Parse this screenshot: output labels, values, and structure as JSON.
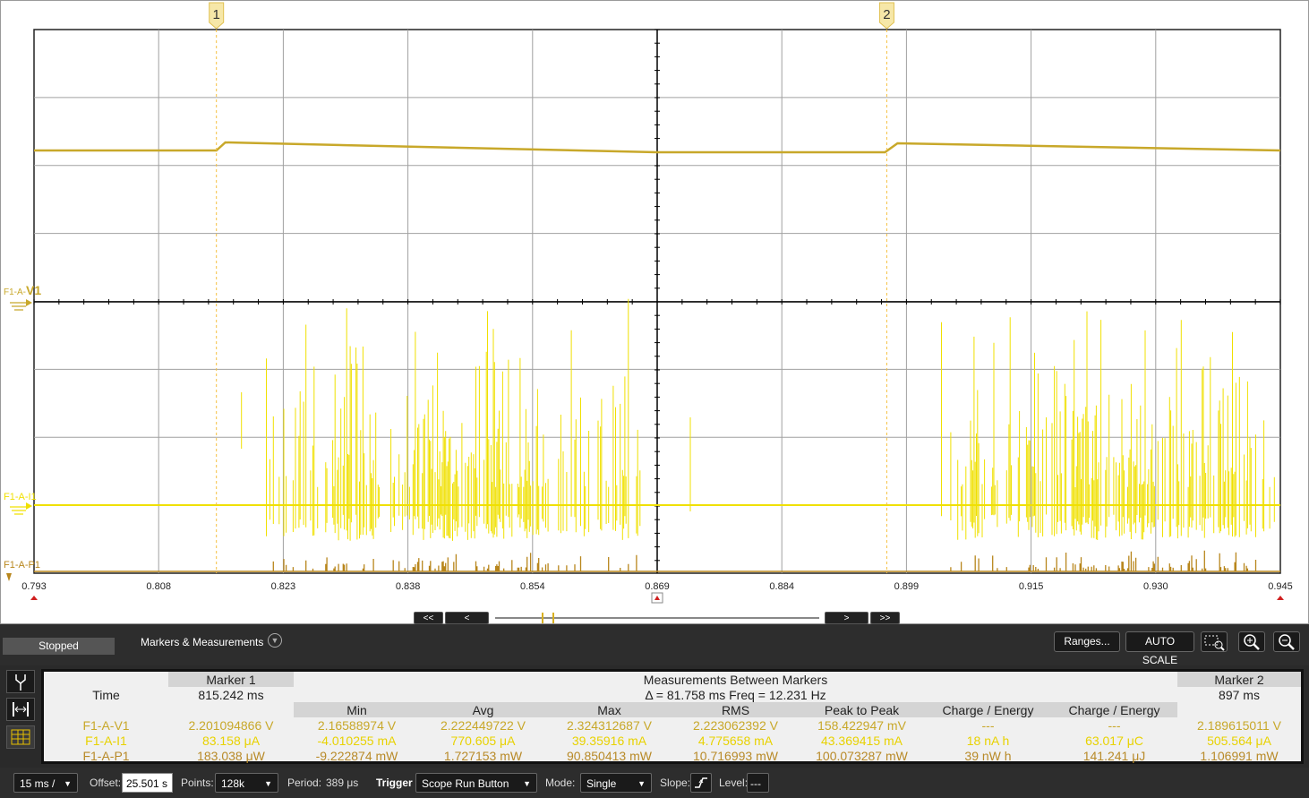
{
  "colors": {
    "v1": "#c8a82a",
    "i1": "#f0e000",
    "p1": "#b8861c",
    "marker": "#f5c040",
    "grid": "#a0a0a0"
  },
  "plot": {
    "x_ticks": [
      "0.793",
      "0.808",
      "0.823",
      "0.838",
      "0.854",
      "0.869",
      "0.884",
      "0.899",
      "0.915",
      "0.930",
      "0.945"
    ],
    "channels": {
      "v1_prefix": "F1-A-",
      "v1_name": "V1",
      "i1_label": "F1-A-I1",
      "p1_label": "F1-A-P1"
    },
    "markers": [
      {
        "label": "1",
        "time_s": 0.815242
      },
      {
        "label": "2",
        "time_s": 0.897
      }
    ]
  },
  "scroll": {
    "btn_first": "<<",
    "btn_prev": "<",
    "btn_next": ">",
    "btn_last": ">>"
  },
  "status": {
    "state": "Stopped",
    "markers_title": "Markers & Measurements"
  },
  "toolbar": {
    "ranges": "Ranges...",
    "autoscale": "AUTO SCALE",
    "zoom_area_icon": "zoom-area-icon",
    "zoom_in_icon": "zoom-in-icon",
    "zoom_out_icon": "zoom-out-icon"
  },
  "measurements": {
    "marker1_title": "Marker 1",
    "marker2_title": "Marker 2",
    "between_title": "Measurements Between Markers",
    "time_label": "Time",
    "marker1_time": "815.242 ms",
    "marker2_time": "897 ms",
    "delta": "Δ = 81.758 ms   Freq = 12.231 Hz",
    "columns": [
      "Min",
      "Avg",
      "Max",
      "RMS",
      "Peak to Peak",
      "Charge / Energy",
      "Charge / Energy"
    ],
    "rows": [
      {
        "name": "F1-A-V1",
        "m1": "2.201094866 V",
        "min": "2.16588974 V",
        "avg": "2.222449722 V",
        "max": "2.324312687 V",
        "rms": "2.223062392 V",
        "pp": "158.422947 mV",
        "ce1": "---",
        "ce2": "---",
        "m2": "2.189615011 V"
      },
      {
        "name": "F1-A-I1",
        "m1": "83.158 μA",
        "min": "-4.010255 mA",
        "avg": "770.605 μA",
        "max": "39.35916 mA",
        "rms": "4.775658 mA",
        "pp": "43.369415 mA",
        "ce1": "18 nA h",
        "ce2": "63.017 μC",
        "m2": "505.564 μA"
      },
      {
        "name": "F1-A-P1",
        "m1": "183.038 μW",
        "min": "-9.222874 mW",
        "avg": "1.727153 mW",
        "max": "90.850413 mW",
        "rms": "10.716993 mW",
        "pp": "100.073287 mW",
        "ce1": "39 nW h",
        "ce2": "141.241 μJ",
        "m2": "1.106991 mW"
      }
    ]
  },
  "bottom": {
    "timebase": "15 ms /",
    "offset_label": "Offset:",
    "offset_value": "25.501 s",
    "points_label": "Points:",
    "points_value": "128k",
    "period_label": "Period:",
    "period_value": "389 μs",
    "trigger_label": "Trigger",
    "trigger_source": "Scope Run Button",
    "mode_label": "Mode:",
    "mode_value": "Single",
    "slope_label": "Slope:",
    "level_label": "Level:",
    "level_value": "---"
  }
}
